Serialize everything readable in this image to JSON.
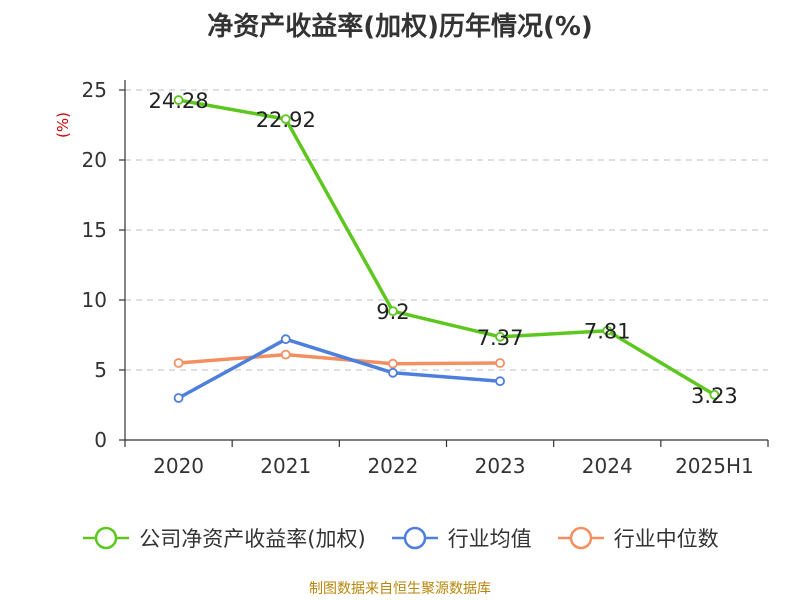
{
  "title": "净资产收益率(加权)历年情况(%)",
  "footer": "制图数据来自恒生聚源数据库",
  "colors": {
    "roe": "#5ec71f",
    "avg": "#4f7fdc",
    "median": "#f39062",
    "grid": "#cccccc",
    "axis": "#333333",
    "unit": "#cc0000"
  },
  "chart_data": {
    "type": "line",
    "title": "净资产收益率(加权)历年情况(%)",
    "categories": [
      "2020",
      "2021",
      "2022",
      "2023",
      "2024",
      "2025H1"
    ],
    "ylabel": "(%)",
    "ylim": [
      0,
      25
    ],
    "yticks": [
      0,
      5,
      10,
      15,
      20,
      25
    ],
    "grid": true,
    "legend_position": "bottom",
    "series": [
      {
        "name": "公司净资产收益率(加权)",
        "color": "#5ec71f",
        "values": [
          24.28,
          22.92,
          9.2,
          7.37,
          7.81,
          3.23
        ],
        "labels": [
          "24.28",
          "22.92",
          "9.2",
          "7.37",
          "7.81",
          "3.23"
        ]
      },
      {
        "name": "行业均值",
        "color": "#4f7fdc",
        "values": [
          3.0,
          7.2,
          4.8,
          4.2,
          null,
          null
        ]
      },
      {
        "name": "行业中位数",
        "color": "#f39062",
        "values": [
          5.5,
          6.1,
          5.45,
          5.5,
          null,
          null
        ]
      }
    ]
  }
}
